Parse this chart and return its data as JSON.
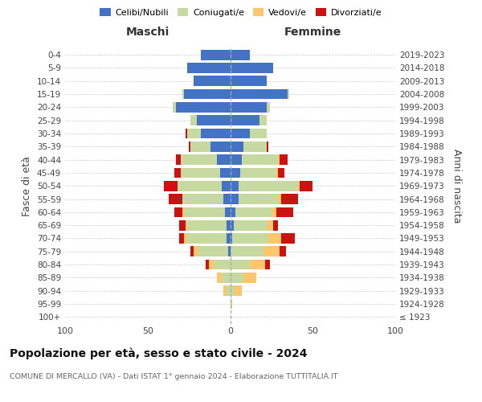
{
  "age_groups": [
    "100+",
    "95-99",
    "90-94",
    "85-89",
    "80-84",
    "75-79",
    "70-74",
    "65-69",
    "60-64",
    "55-59",
    "50-54",
    "45-49",
    "40-44",
    "35-39",
    "30-34",
    "25-29",
    "20-24",
    "15-19",
    "10-14",
    "5-9",
    "0-4"
  ],
  "birth_years": [
    "≤ 1923",
    "1924-1928",
    "1929-1933",
    "1934-1938",
    "1939-1943",
    "1944-1948",
    "1949-1953",
    "1954-1958",
    "1959-1963",
    "1964-1968",
    "1969-1973",
    "1974-1978",
    "1979-1983",
    "1984-1988",
    "1989-1993",
    "1994-1998",
    "1999-2003",
    "2004-2008",
    "2009-2013",
    "2014-2018",
    "2019-2023"
  ],
  "maschi": {
    "celibi": [
      0,
      0,
      0,
      0,
      0,
      1,
      2,
      2,
      3,
      4,
      5,
      6,
      8,
      12,
      18,
      20,
      33,
      28,
      22,
      26,
      18
    ],
    "coniugati": [
      0,
      0,
      2,
      5,
      10,
      18,
      24,
      24,
      25,
      25,
      27,
      24,
      22,
      12,
      8,
      4,
      2,
      1,
      0,
      0,
      0
    ],
    "vedovi": [
      0,
      0,
      2,
      3,
      3,
      3,
      2,
      1,
      1,
      0,
      0,
      0,
      0,
      0,
      0,
      0,
      0,
      0,
      0,
      0,
      0
    ],
    "divorziati": [
      0,
      0,
      0,
      0,
      2,
      2,
      3,
      4,
      5,
      8,
      8,
      4,
      3,
      1,
      1,
      0,
      0,
      0,
      0,
      0,
      0
    ]
  },
  "femmine": {
    "nubili": [
      0,
      0,
      0,
      0,
      0,
      0,
      1,
      2,
      3,
      5,
      5,
      6,
      7,
      8,
      12,
      18,
      22,
      35,
      22,
      26,
      12
    ],
    "coniugate": [
      0,
      0,
      2,
      8,
      12,
      20,
      22,
      20,
      22,
      24,
      36,
      22,
      22,
      14,
      10,
      4,
      2,
      1,
      0,
      0,
      0
    ],
    "vedove": [
      0,
      1,
      5,
      8,
      9,
      10,
      8,
      4,
      3,
      2,
      1,
      1,
      1,
      0,
      0,
      0,
      0,
      0,
      0,
      0,
      0
    ],
    "divorziate": [
      0,
      0,
      0,
      0,
      3,
      4,
      8,
      3,
      10,
      10,
      8,
      4,
      5,
      1,
      0,
      0,
      0,
      0,
      0,
      0,
      0
    ]
  },
  "colors": {
    "celibi": "#4472c4",
    "coniugati": "#c6d9a0",
    "vedovi": "#fac76e",
    "divorziati": "#cc1111"
  },
  "xlim": 100,
  "title": "Popolazione per età, sesso e stato civile - 2024",
  "subtitle": "COMUNE DI MERCALLO (VA) - Dati ISTAT 1° gennaio 2024 - Elaborazione TUTTITALIA.IT",
  "ylabel_left": "Fasce di età",
  "ylabel_right": "Anni di nascita",
  "xlabel_left": "Maschi",
  "xlabel_right": "Femmine",
  "bg_color": "#ffffff",
  "grid_color": "#cccccc"
}
